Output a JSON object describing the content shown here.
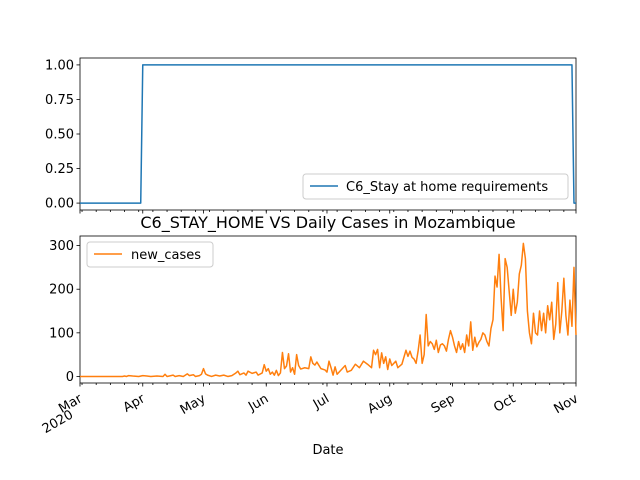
{
  "chart_data": [
    {
      "type": "line",
      "title": "",
      "xlabel": "",
      "ylabel": "",
      "ylim": [
        -0.05,
        1.05
      ],
      "yticks": [
        "0.00",
        "0.25",
        "0.50",
        "0.75",
        "1.00"
      ],
      "xlim": [
        "2020-03-01",
        "2020-11-01"
      ],
      "legend_position": "lower right",
      "grid": false,
      "series": [
        {
          "name": "C6_Stay at home requirements",
          "color": "#1f77b4",
          "points": [
            [
              "2020-03-01",
              0
            ],
            [
              "2020-03-31",
              0
            ],
            [
              "2020-04-01",
              1
            ],
            [
              "2020-10-30",
              1
            ],
            [
              "2020-10-31",
              0
            ],
            [
              "2020-11-01",
              0
            ]
          ]
        }
      ]
    },
    {
      "type": "line",
      "title": "C6_STAY_HOME VS Daily Cases in Mozambique",
      "xlabel": "Date",
      "ylabel": "",
      "ylim": [
        -15,
        322
      ],
      "yticks": [
        "0",
        "100",
        "200",
        "300"
      ],
      "xlim": [
        "2020-03-01",
        "2020-11-01"
      ],
      "xtick_labels": [
        "Mar\n2020",
        "Apr",
        "May",
        "Jun",
        "Jul",
        "Aug",
        "Sep",
        "Oct",
        "Nov"
      ],
      "legend_position": "upper left",
      "grid": false,
      "series": [
        {
          "name": "new_cases",
          "color": "#ff7f0e",
          "points": [
            [
              "2020-03-01",
              0
            ],
            [
              "2020-03-22",
              0
            ],
            [
              "2020-03-23",
              1
            ],
            [
              "2020-03-24",
              0
            ],
            [
              "2020-03-25",
              2
            ],
            [
              "2020-03-27",
              1
            ],
            [
              "2020-03-30",
              0
            ],
            [
              "2020-04-01",
              2
            ],
            [
              "2020-04-03",
              1
            ],
            [
              "2020-04-05",
              0
            ],
            [
              "2020-04-08",
              1
            ],
            [
              "2020-04-11",
              0
            ],
            [
              "2020-04-12",
              5
            ],
            [
              "2020-04-13",
              0
            ],
            [
              "2020-04-16",
              3
            ],
            [
              "2020-04-17",
              0
            ],
            [
              "2020-04-19",
              2
            ],
            [
              "2020-04-21",
              0
            ],
            [
              "2020-04-23",
              6
            ],
            [
              "2020-04-24",
              2
            ],
            [
              "2020-04-26",
              4
            ],
            [
              "2020-04-27",
              0
            ],
            [
              "2020-04-29",
              2
            ],
            [
              "2020-04-30",
              5
            ],
            [
              "2020-05-01",
              18
            ],
            [
              "2020-05-02",
              6
            ],
            [
              "2020-05-03",
              3
            ],
            [
              "2020-05-05",
              0
            ],
            [
              "2020-05-07",
              3
            ],
            [
              "2020-05-09",
              1
            ],
            [
              "2020-05-11",
              3
            ],
            [
              "2020-05-13",
              0
            ],
            [
              "2020-05-15",
              2
            ],
            [
              "2020-05-17",
              8
            ],
            [
              "2020-05-18",
              12
            ],
            [
              "2020-05-19",
              4
            ],
            [
              "2020-05-21",
              8
            ],
            [
              "2020-05-22",
              3
            ],
            [
              "2020-05-23",
              12
            ],
            [
              "2020-05-25",
              7
            ],
            [
              "2020-05-27",
              10
            ],
            [
              "2020-05-28",
              3
            ],
            [
              "2020-05-30",
              8
            ],
            [
              "2020-05-31",
              27
            ],
            [
              "2020-06-01",
              12
            ],
            [
              "2020-06-02",
              18
            ],
            [
              "2020-06-03",
              5
            ],
            [
              "2020-06-04",
              10
            ],
            [
              "2020-06-05",
              3
            ],
            [
              "2020-06-06",
              14
            ],
            [
              "2020-06-07",
              2
            ],
            [
              "2020-06-08",
              8
            ],
            [
              "2020-06-09",
              55
            ],
            [
              "2020-06-10",
              18
            ],
            [
              "2020-06-11",
              24
            ],
            [
              "2020-06-12",
              52
            ],
            [
              "2020-06-13",
              10
            ],
            [
              "2020-06-14",
              20
            ],
            [
              "2020-06-15",
              5
            ],
            [
              "2020-06-16",
              50
            ],
            [
              "2020-06-17",
              25
            ],
            [
              "2020-06-18",
              17
            ],
            [
              "2020-06-20",
              20
            ],
            [
              "2020-06-22",
              18
            ],
            [
              "2020-06-23",
              45
            ],
            [
              "2020-06-24",
              30
            ],
            [
              "2020-06-25",
              26
            ],
            [
              "2020-06-26",
              33
            ],
            [
              "2020-06-28",
              18
            ],
            [
              "2020-06-30",
              15
            ],
            [
              "2020-07-01",
              10
            ],
            [
              "2020-07-02",
              35
            ],
            [
              "2020-07-03",
              20
            ],
            [
              "2020-07-04",
              3
            ],
            [
              "2020-07-05",
              22
            ],
            [
              "2020-07-06",
              5
            ],
            [
              "2020-07-08",
              15
            ],
            [
              "2020-07-10",
              25
            ],
            [
              "2020-07-11",
              10
            ],
            [
              "2020-07-13",
              14
            ],
            [
              "2020-07-15",
              28
            ],
            [
              "2020-07-17",
              20
            ],
            [
              "2020-07-19",
              35
            ],
            [
              "2020-07-21",
              28
            ],
            [
              "2020-07-23",
              20
            ],
            [
              "2020-07-24",
              60
            ],
            [
              "2020-07-25",
              50
            ],
            [
              "2020-07-26",
              62
            ],
            [
              "2020-07-27",
              20
            ],
            [
              "2020-07-28",
              54
            ],
            [
              "2020-07-29",
              30
            ],
            [
              "2020-07-30",
              45
            ],
            [
              "2020-07-31",
              16
            ],
            [
              "2020-08-01",
              40
            ],
            [
              "2020-08-02",
              25
            ],
            [
              "2020-08-04",
              35
            ],
            [
              "2020-08-05",
              20
            ],
            [
              "2020-08-07",
              28
            ],
            [
              "2020-08-09",
              60
            ],
            [
              "2020-08-10",
              46
            ],
            [
              "2020-08-11",
              58
            ],
            [
              "2020-08-12",
              44
            ],
            [
              "2020-08-13",
              40
            ],
            [
              "2020-08-14",
              30
            ],
            [
              "2020-08-15",
              58
            ],
            [
              "2020-08-16",
              95
            ],
            [
              "2020-08-17",
              30
            ],
            [
              "2020-08-18",
              50
            ],
            [
              "2020-08-19",
              142
            ],
            [
              "2020-08-20",
              70
            ],
            [
              "2020-08-21",
              80
            ],
            [
              "2020-08-22",
              75
            ],
            [
              "2020-08-23",
              62
            ],
            [
              "2020-08-24",
              83
            ],
            [
              "2020-08-25",
              55
            ],
            [
              "2020-08-26",
              72
            ],
            [
              "2020-08-27",
              75
            ],
            [
              "2020-08-28",
              70
            ],
            [
              "2020-08-29",
              58
            ],
            [
              "2020-08-30",
              85
            ],
            [
              "2020-08-31",
              105
            ],
            [
              "2020-09-01",
              90
            ],
            [
              "2020-09-02",
              70
            ],
            [
              "2020-09-03",
              55
            ],
            [
              "2020-09-04",
              80
            ],
            [
              "2020-09-05",
              62
            ],
            [
              "2020-09-06",
              75
            ],
            [
              "2020-09-07",
              55
            ],
            [
              "2020-09-08",
              95
            ],
            [
              "2020-09-09",
              70
            ],
            [
              "2020-09-10",
              125
            ],
            [
              "2020-09-11",
              60
            ],
            [
              "2020-09-12",
              90
            ],
            [
              "2020-09-13",
              68
            ],
            [
              "2020-09-14",
              78
            ],
            [
              "2020-09-15",
              85
            ],
            [
              "2020-09-16",
              100
            ],
            [
              "2020-09-17",
              95
            ],
            [
              "2020-09-18",
              80
            ],
            [
              "2020-09-19",
              70
            ],
            [
              "2020-09-20",
              110
            ],
            [
              "2020-09-21",
              130
            ],
            [
              "2020-09-22",
              230
            ],
            [
              "2020-09-23",
              205
            ],
            [
              "2020-09-24",
              280
            ],
            [
              "2020-09-25",
              180
            ],
            [
              "2020-09-26",
              105
            ],
            [
              "2020-09-27",
              270
            ],
            [
              "2020-09-28",
              250
            ],
            [
              "2020-09-29",
              195
            ],
            [
              "2020-09-30",
              140
            ],
            [
              "2020-10-01",
              200
            ],
            [
              "2020-10-02",
              145
            ],
            [
              "2020-10-03",
              170
            ],
            [
              "2020-10-04",
              235
            ],
            [
              "2020-10-05",
              255
            ],
            [
              "2020-10-06",
              305
            ],
            [
              "2020-10-07",
              270
            ],
            [
              "2020-10-08",
              150
            ],
            [
              "2020-10-09",
              100
            ],
            [
              "2020-10-10",
              75
            ],
            [
              "2020-10-11",
              145
            ],
            [
              "2020-10-12",
              100
            ],
            [
              "2020-10-13",
              95
            ],
            [
              "2020-10-14",
              150
            ],
            [
              "2020-10-15",
              105
            ],
            [
              "2020-10-16",
              145
            ],
            [
              "2020-10-17",
              100
            ],
            [
              "2020-10-18",
              162
            ],
            [
              "2020-10-19",
              130
            ],
            [
              "2020-10-20",
              170
            ],
            [
              "2020-10-21",
              85
            ],
            [
              "2020-10-22",
              120
            ],
            [
              "2020-10-23",
              215
            ],
            [
              "2020-10-24",
              100
            ],
            [
              "2020-10-25",
              150
            ],
            [
              "2020-10-26",
              225
            ],
            [
              "2020-10-27",
              140
            ],
            [
              "2020-10-28",
              95
            ],
            [
              "2020-10-29",
              175
            ],
            [
              "2020-10-30",
              115
            ],
            [
              "2020-10-31",
              250
            ],
            [
              "2020-11-01",
              95
            ]
          ]
        }
      ]
    }
  ]
}
